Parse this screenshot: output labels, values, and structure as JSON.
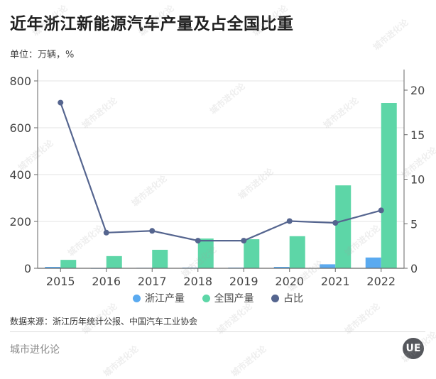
{
  "header": {
    "title": "近年浙江新能源汽车产量及占全国比重",
    "unit": "单位：万辆，%"
  },
  "legend": [
    {
      "label": "浙江产量",
      "color": "#5aaaf0"
    },
    {
      "label": "全国产量",
      "color": "#5dd6a7"
    },
    {
      "label": "占比",
      "color": "#55658f"
    }
  ],
  "footer": {
    "source": "数据来源：浙江历年统计公报、中国汽车工业协会",
    "brand": "城市进化论",
    "logo_text": "UE",
    "watermark": "城市进化论"
  },
  "chart_data": {
    "type": "bar",
    "title": "近年浙江新能源汽车产量及占全国比重",
    "subtitle": "单位：万辆，%",
    "categories": [
      "2015",
      "2016",
      "2017",
      "2018",
      "2019",
      "2020",
      "2021",
      "2022"
    ],
    "series": [
      {
        "name": "浙江产量",
        "type": "bar",
        "axis": "left",
        "color": "#5aaaf0",
        "values": [
          6,
          1,
          2,
          3,
          3,
          6,
          17,
          46
        ]
      },
      {
        "name": "全国产量",
        "type": "bar",
        "axis": "left",
        "color": "#5dd6a7",
        "values": [
          36,
          52,
          79,
          127,
          124,
          137,
          354,
          706
        ]
      },
      {
        "name": "占比",
        "type": "line",
        "axis": "right",
        "color": "#55658f",
        "values": [
          18.6,
          4.0,
          4.2,
          3.1,
          3.1,
          5.3,
          5.1,
          6.5
        ]
      }
    ],
    "ylim_left": [
      0,
      800
    ],
    "yticks_left": [
      0,
      200,
      400,
      600,
      800
    ],
    "ylim_right": [
      0,
      20
    ],
    "yticks_right": [
      0,
      5,
      10,
      15,
      20
    ],
    "xlabel": "",
    "ylabel": "万辆",
    "ylabel_right": "%",
    "grid": true,
    "legend_position": "bottom"
  }
}
